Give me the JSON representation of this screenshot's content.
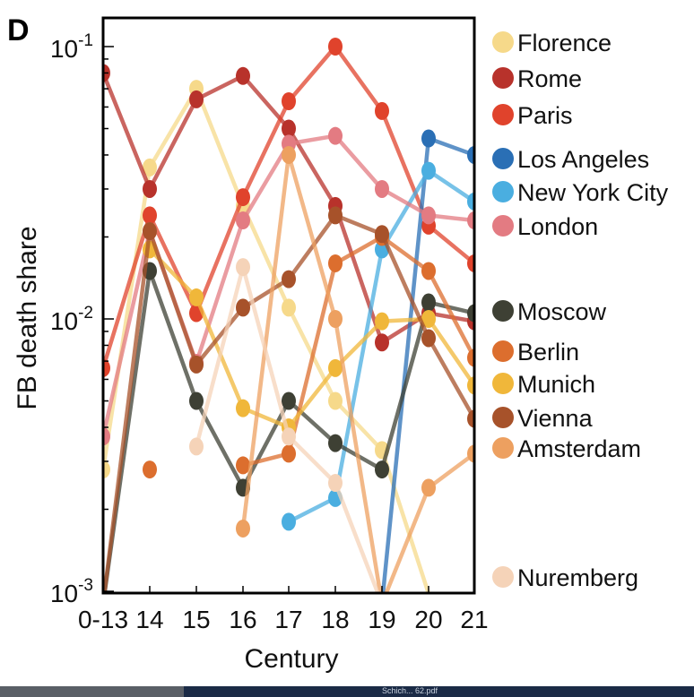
{
  "panel_label": "D",
  "taskbar_text": "Schich... 62.pdf",
  "chart_data": {
    "type": "line",
    "xlabel": "Century",
    "ylabel": "FB death share",
    "yscale": "log",
    "ylim": [
      0.001,
      0.1
    ],
    "ytick_labels": [
      {
        "base": "10",
        "exp": "-1",
        "value": 0.1
      },
      {
        "base": "10",
        "exp": "-2",
        "value": 0.01
      },
      {
        "base": "10",
        "exp": "-3",
        "value": 0.001
      }
    ],
    "categories": [
      "0-13",
      "14",
      "15",
      "16",
      "17",
      "18",
      "19",
      "20",
      "21"
    ],
    "legend_position": "right",
    "series": [
      {
        "name": "Florence",
        "color": "#f6d98a",
        "values": [
          0.0028,
          0.036,
          0.07,
          0.026,
          0.011,
          0.005,
          0.0033,
          0.00098,
          null
        ]
      },
      {
        "name": "Rome",
        "color": "#b8322b",
        "values": [
          0.08,
          0.03,
          0.064,
          0.078,
          0.05,
          0.026,
          0.0082,
          0.0105,
          0.0098
        ]
      },
      {
        "name": "Paris",
        "color": "#e0432c",
        "values": [
          0.0066,
          0.024,
          0.0105,
          0.028,
          0.063,
          0.102,
          0.058,
          0.022,
          0.016
        ]
      },
      {
        "name": "Los Angeles",
        "color": "#2a6fb5",
        "values": [
          null,
          null,
          null,
          null,
          null,
          null,
          0.0009,
          0.046,
          0.04
        ]
      },
      {
        "name": "New York City",
        "color": "#4aaee0",
        "values": [
          null,
          null,
          null,
          null,
          0.0018,
          0.0022,
          0.018,
          0.035,
          0.027
        ]
      },
      {
        "name": "London",
        "color": "#e37b82",
        "values": [
          0.0037,
          0.021,
          0.0069,
          0.023,
          0.044,
          0.047,
          0.03,
          0.024,
          0.023
        ]
      },
      {
        "name": "Moscow",
        "color": "#3e4034",
        "values": [
          0.0009,
          0.015,
          0.005,
          0.0024,
          0.005,
          0.0035,
          0.0028,
          0.0115,
          0.0105
        ]
      },
      {
        "name": "Berlin",
        "color": "#dc6e2e",
        "values": [
          null,
          0.0028,
          null,
          0.0029,
          0.0032,
          0.016,
          0.02,
          0.015,
          0.0072
        ]
      },
      {
        "name": "Munich",
        "color": "#f0b73a",
        "values": [
          null,
          0.018,
          0.012,
          0.0047,
          0.004,
          0.0066,
          0.0098,
          0.01,
          0.0057
        ]
      },
      {
        "name": "Vienna",
        "color": "#a7522a",
        "values": [
          0.0009,
          0.021,
          0.0068,
          0.011,
          0.014,
          0.024,
          0.0205,
          0.0085,
          0.0043
        ]
      },
      {
        "name": "Amsterdam",
        "color": "#eda060",
        "values": [
          null,
          null,
          null,
          0.0017,
          0.04,
          0.01,
          0.0009,
          0.0024,
          0.0032
        ]
      },
      {
        "name": "Nuremberg",
        "color": "#f5d3b8",
        "values": [
          null,
          null,
          0.0034,
          0.0155,
          0.0037,
          0.0025,
          0.0009,
          null,
          null
        ]
      }
    ]
  }
}
